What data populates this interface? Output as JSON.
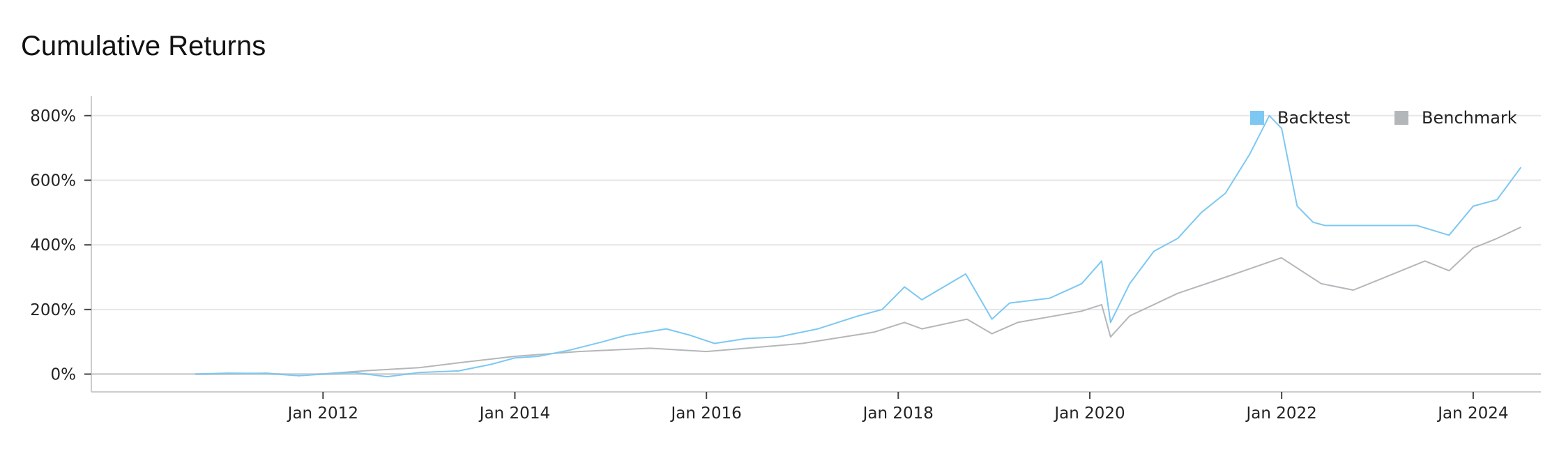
{
  "chart_data": {
    "type": "line",
    "title": "Cumulative Returns",
    "xlabel": "",
    "ylabel": "",
    "x_ticks": [
      "Jan 2012",
      "Jan 2014",
      "Jan 2016",
      "Jan 2018",
      "Jan 2020",
      "Jan 2022",
      "Jan 2024"
    ],
    "y_ticks": [
      "0%",
      "200%",
      "400%",
      "600%",
      "800%"
    ],
    "ylim": [
      -55,
      860
    ],
    "xlim": [
      "2009-08-01",
      "2024-09-15"
    ],
    "grid": "horizontal",
    "legend_position": "top-right",
    "series": [
      {
        "name": "Backtest",
        "color": "#7cc8f2",
        "points": [
          [
            "2010-09-01",
            0
          ],
          [
            "2011-01-01",
            3
          ],
          [
            "2011-06-01",
            2
          ],
          [
            "2011-10-01",
            -5
          ],
          [
            "2012-01-01",
            0
          ],
          [
            "2012-05-01",
            5
          ],
          [
            "2012-09-01",
            -8
          ],
          [
            "2013-01-01",
            5
          ],
          [
            "2013-06-01",
            10
          ],
          [
            "2013-10-01",
            30
          ],
          [
            "2014-01-01",
            50
          ],
          [
            "2014-04-01",
            55
          ],
          [
            "2014-08-01",
            75
          ],
          [
            "2014-12-01",
            100
          ],
          [
            "2015-03-01",
            120
          ],
          [
            "2015-08-01",
            140
          ],
          [
            "2015-11-01",
            120
          ],
          [
            "2016-02-01",
            95
          ],
          [
            "2016-06-01",
            110
          ],
          [
            "2016-10-01",
            115
          ],
          [
            "2017-03-01",
            140
          ],
          [
            "2017-08-01",
            180
          ],
          [
            "2017-11-01",
            200
          ],
          [
            "2018-01-25",
            270
          ],
          [
            "2018-04-01",
            230
          ],
          [
            "2018-09-15",
            310
          ],
          [
            "2018-12-24",
            170
          ],
          [
            "2019-03-01",
            220
          ],
          [
            "2019-08-01",
            235
          ],
          [
            "2019-12-01",
            280
          ],
          [
            "2020-02-15",
            350
          ],
          [
            "2020-03-20",
            160
          ],
          [
            "2020-06-01",
            280
          ],
          [
            "2020-09-01",
            380
          ],
          [
            "2020-12-01",
            420
          ],
          [
            "2021-03-01",
            500
          ],
          [
            "2021-06-01",
            560
          ],
          [
            "2021-09-01",
            680
          ],
          [
            "2021-11-15",
            800
          ],
          [
            "2022-01-01",
            760
          ],
          [
            "2022-03-01",
            520
          ],
          [
            "2022-05-01",
            470
          ],
          [
            "2022-06-15",
            460
          ],
          [
            "2023-06-01",
            460
          ],
          [
            "2023-10-01",
            430
          ],
          [
            "2024-01-01",
            520
          ],
          [
            "2024-04-01",
            540
          ],
          [
            "2024-07-01",
            640
          ]
        ]
      },
      {
        "name": "Benchmark",
        "color": "#b4b7ba",
        "points": [
          [
            "2010-09-01",
            0
          ],
          [
            "2011-06-01",
            3
          ],
          [
            "2011-10-01",
            -5
          ],
          [
            "2012-06-01",
            10
          ],
          [
            "2013-01-01",
            20
          ],
          [
            "2013-06-01",
            35
          ],
          [
            "2014-01-01",
            55
          ],
          [
            "2014-09-01",
            70
          ],
          [
            "2015-06-01",
            80
          ],
          [
            "2016-01-01",
            70
          ],
          [
            "2016-06-01",
            80
          ],
          [
            "2017-01-01",
            95
          ],
          [
            "2017-10-01",
            130
          ],
          [
            "2018-01-25",
            160
          ],
          [
            "2018-04-01",
            140
          ],
          [
            "2018-09-20",
            170
          ],
          [
            "2018-12-24",
            125
          ],
          [
            "2019-04-01",
            160
          ],
          [
            "2019-12-01",
            195
          ],
          [
            "2020-02-15",
            215
          ],
          [
            "2020-03-20",
            115
          ],
          [
            "2020-06-01",
            180
          ],
          [
            "2020-12-01",
            250
          ],
          [
            "2021-06-01",
            300
          ],
          [
            "2021-12-31",
            360
          ],
          [
            "2022-06-01",
            280
          ],
          [
            "2022-10-01",
            260
          ],
          [
            "2023-01-01",
            290
          ],
          [
            "2023-07-01",
            350
          ],
          [
            "2023-10-01",
            320
          ],
          [
            "2024-01-01",
            390
          ],
          [
            "2024-04-01",
            420
          ],
          [
            "2024-07-01",
            455
          ]
        ]
      }
    ]
  }
}
